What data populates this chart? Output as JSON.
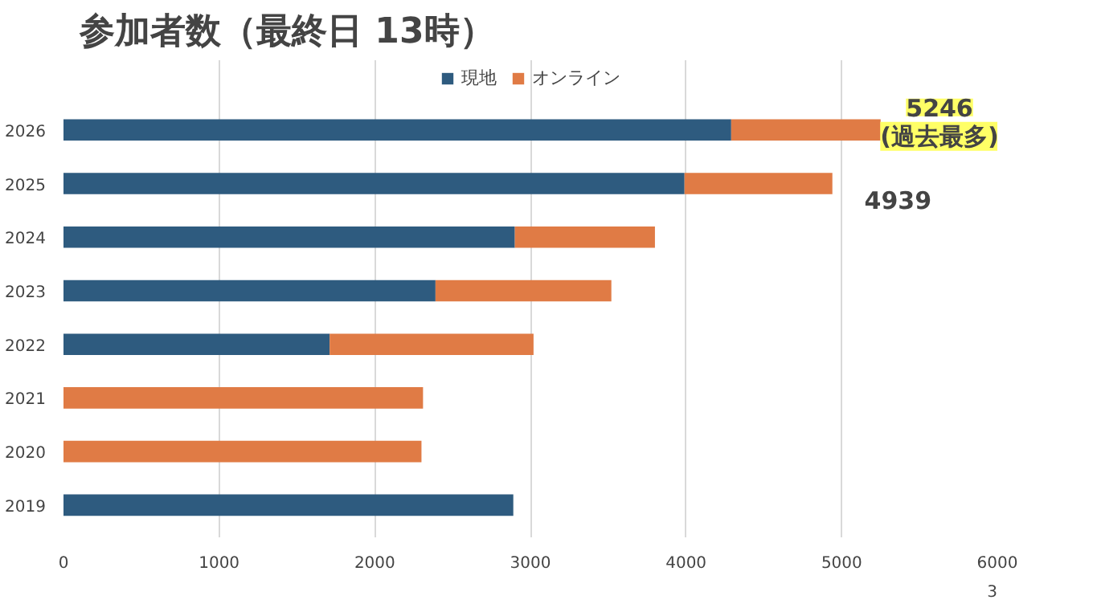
{
  "chart_data": {
    "type": "bar",
    "orientation": "horizontal",
    "stacked": true,
    "title": "参加者数（最終日 13時）",
    "categories": [
      "2026",
      "2025",
      "2024",
      "2023",
      "2022",
      "2021",
      "2020",
      "2019"
    ],
    "series": [
      {
        "name": "現地",
        "color": "#2e5b7f",
        "values": [
          4290,
          3990,
          2900,
          2390,
          1710,
          null,
          null,
          2890
        ]
      },
      {
        "name": "オンライン",
        "color": "#e07b45",
        "values": [
          960,
          950,
          900,
          1130,
          1310,
          2310,
          2300,
          null
        ]
      }
    ],
    "xlim": [
      0,
      6000
    ],
    "xticks": [
      0,
      1000,
      2000,
      3000,
      4000,
      5000,
      6000
    ],
    "grid": "x",
    "legend": "top",
    "annotations": [
      "5246\n(過去最多)",
      {
        "text": "4939",
        "x": 4939,
        "y": "2025"
      },
      "3"
    ]
  }
}
